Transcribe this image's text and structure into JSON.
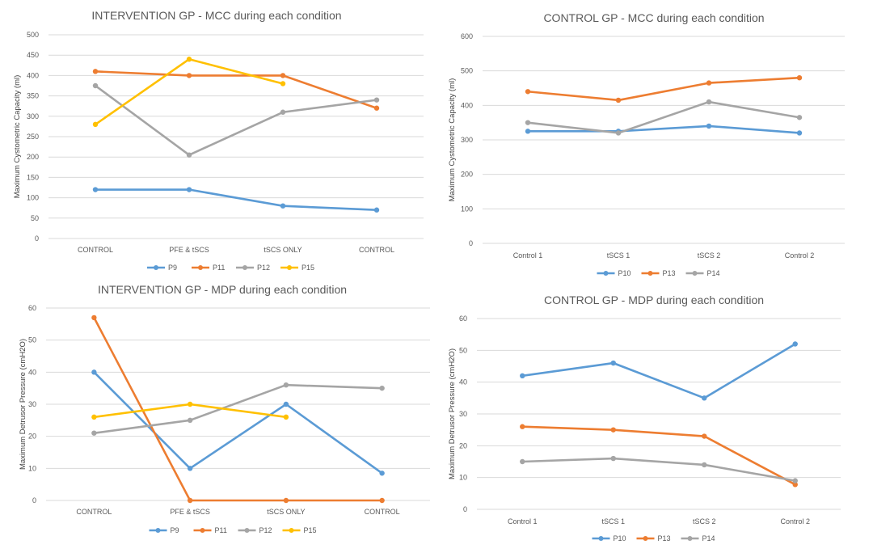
{
  "chart_data": [
    {
      "type": "line",
      "title": "INTERVENTION GP - MCC during each condition",
      "ylabel": "Maximum Cystometric Capacity (ml)",
      "xlabel": "",
      "categories": [
        "CONTROL",
        "PFE & tSCS",
        "tSCS ONLY",
        "CONTROL"
      ],
      "ylim": [
        0,
        500
      ],
      "yticks": [
        0,
        50,
        100,
        150,
        200,
        250,
        300,
        350,
        400,
        450,
        500
      ],
      "grid": true,
      "legend": "bottom",
      "series": [
        {
          "name": "P9",
          "color": "#5b9bd5",
          "values": [
            120,
            120,
            80,
            70
          ]
        },
        {
          "name": "P11",
          "color": "#ed7d31",
          "values": [
            410,
            400,
            400,
            320
          ]
        },
        {
          "name": "P12",
          "color": "#a5a5a5",
          "values": [
            375,
            205,
            310,
            340
          ]
        },
        {
          "name": "P15",
          "color": "#ffc000",
          "values": [
            280,
            440,
            380,
            null
          ]
        }
      ]
    },
    {
      "type": "line",
      "title": "CONTROL GP - MCC during each condition",
      "ylabel": "Maximum Cystometric Capacity (ml)",
      "xlabel": "",
      "categories": [
        "Control 1",
        "tSCS 1",
        "tSCS 2",
        "Control 2"
      ],
      "ylim": [
        0,
        600
      ],
      "yticks": [
        0,
        100,
        200,
        300,
        400,
        500,
        600
      ],
      "grid": true,
      "legend": "bottom",
      "series": [
        {
          "name": "P10",
          "color": "#5b9bd5",
          "values": [
            325,
            325,
            340,
            320
          ]
        },
        {
          "name": "P13",
          "color": "#ed7d31",
          "values": [
            440,
            415,
            465,
            480
          ]
        },
        {
          "name": "P14",
          "color": "#a5a5a5",
          "values": [
            350,
            320,
            410,
            365
          ]
        }
      ]
    },
    {
      "type": "line",
      "title": "INTERVENTION GP - MDP during each condition",
      "ylabel": "Maximum Detrusor Pressure (cmH2O)",
      "xlabel": "",
      "categories": [
        "CONTROL",
        "PFE & tSCS",
        "tSCS ONLY",
        "CONTROL"
      ],
      "ylim": [
        0,
        60
      ],
      "yticks": [
        0,
        10,
        20,
        30,
        40,
        50,
        60
      ],
      "grid": true,
      "legend": "bottom",
      "series": [
        {
          "name": "P9",
          "color": "#5b9bd5",
          "values": [
            40,
            10,
            30,
            8.5
          ]
        },
        {
          "name": "P11",
          "color": "#ed7d31",
          "values": [
            57,
            0,
            0,
            0
          ]
        },
        {
          "name": "P12",
          "color": "#a5a5a5",
          "values": [
            21,
            25,
            36,
            35
          ]
        },
        {
          "name": "P15",
          "color": "#ffc000",
          "values": [
            26,
            30,
            26,
            null
          ]
        }
      ]
    },
    {
      "type": "line",
      "title": "CONTROL GP - MDP during each condition",
      "ylabel": "Maximum Detrusor Pressure (cmH2O)",
      "xlabel": "",
      "categories": [
        "Control 1",
        "tSCS 1",
        "tSCS 2",
        "Control 2"
      ],
      "ylim": [
        0,
        60
      ],
      "yticks": [
        0,
        10,
        20,
        30,
        40,
        50,
        60
      ],
      "grid": true,
      "legend": "bottom",
      "series": [
        {
          "name": "P10",
          "color": "#5b9bd5",
          "values": [
            42,
            46,
            35,
            52
          ]
        },
        {
          "name": "P13",
          "color": "#ed7d31",
          "values": [
            26,
            25,
            23,
            7.8
          ]
        },
        {
          "name": "P14",
          "color": "#a5a5a5",
          "values": [
            15,
            16,
            14,
            9
          ]
        }
      ]
    }
  ]
}
